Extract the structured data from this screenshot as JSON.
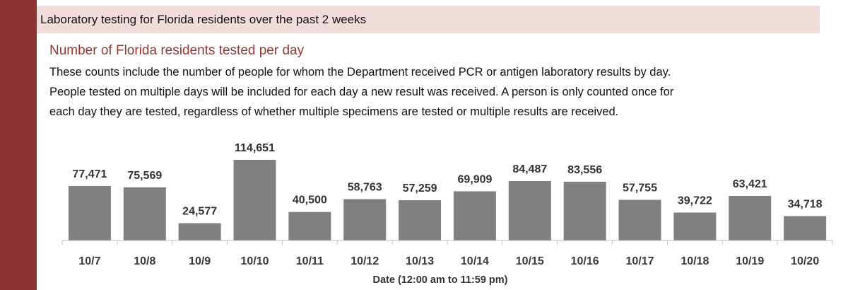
{
  "header": {
    "title": "Laboratory testing for Florida residents over the past 2 weeks"
  },
  "section": {
    "subtitle": "Number of Florida residents tested per day",
    "description_lines": [
      "These counts include the number of people for whom the Department received PCR or antigen laboratory results by day.",
      "People tested on multiple days will be included for each day a new result was received. A person is only counted once for",
      "each day they are tested, regardless of whether multiple specimens are tested or multiple results are received."
    ]
  },
  "colors": {
    "accent_bar": "#8b3433",
    "header_band": "#f2dcdb",
    "subtitle_text": "#953735",
    "bar_fill": "#808080",
    "axis_line": "#bfbfbf"
  },
  "chart_data": {
    "type": "bar",
    "categories": [
      "10/7",
      "10/8",
      "10/9",
      "10/10",
      "10/11",
      "10/12",
      "10/13",
      "10/14",
      "10/15",
      "10/16",
      "10/17",
      "10/18",
      "10/19",
      "10/20"
    ],
    "values": [
      77471,
      75569,
      24577,
      114651,
      40500,
      58763,
      57259,
      69909,
      84487,
      83556,
      57755,
      39722,
      63421,
      34718
    ],
    "value_labels": [
      "77,471",
      "75,569",
      "24,577",
      "114,651",
      "40,500",
      "58,763",
      "57,259",
      "69,909",
      "84,487",
      "83,556",
      "57,755",
      "39,722",
      "63,421",
      "34,718"
    ],
    "xlabel": "Date (12:00 am to 11:59 pm)",
    "ylabel": "",
    "ylim": [
      0,
      114651
    ],
    "grid": false,
    "legend": "none"
  }
}
